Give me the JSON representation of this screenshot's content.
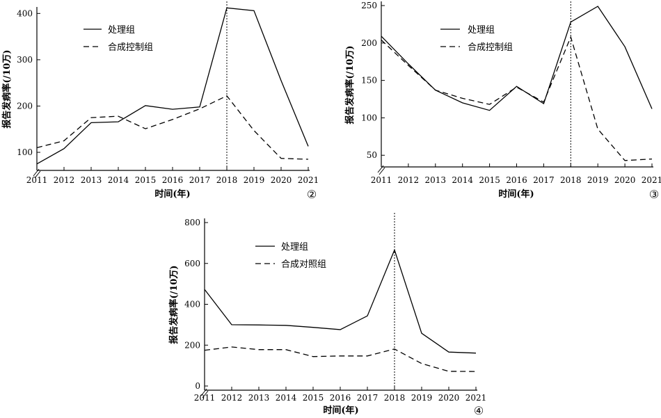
{
  "chart_data": [
    {
      "type": "line",
      "panel_marker": "②",
      "x": [
        "2011",
        "2012",
        "2013",
        "2014",
        "2015",
        "2016",
        "2017",
        "2018",
        "2019",
        "2020",
        "2021"
      ],
      "xlabel": "时间(年)",
      "ylabel": "报告发病率(/10万)",
      "ylim": [
        70,
        405
      ],
      "yticks": [
        100,
        200,
        300,
        400
      ],
      "reference_line_x": "2018",
      "axis_break": true,
      "legend_position": "top-left",
      "series": [
        {
          "name": "处理组",
          "style": "solid",
          "values": [
            75,
            108,
            164,
            166,
            201,
            193,
            198,
            412,
            406,
            255,
            113
          ]
        },
        {
          "name": "合成控制组",
          "style": "dashed",
          "values": [
            110,
            125,
            175,
            178,
            151,
            171,
            194,
            222,
            147,
            87,
            85
          ]
        }
      ]
    },
    {
      "type": "line",
      "panel_marker": "③",
      "x": [
        "2011",
        "2012",
        "2013",
        "2014",
        "2015",
        "2016",
        "2017",
        "2018",
        "2019",
        "2020",
        "2021"
      ],
      "xlabel": "时间(年)",
      "ylabel": "报告发病率(/10万)",
      "ylim": [
        40,
        250
      ],
      "yticks": [
        50,
        100,
        150,
        200,
        250
      ],
      "reference_line_x": "2018",
      "axis_break": true,
      "legend_position": "top-right",
      "series": [
        {
          "name": "处理组",
          "style": "solid",
          "values": [
            209,
            172,
            137,
            120,
            110,
            142,
            119,
            228,
            249,
            195,
            112
          ]
        },
        {
          "name": "合成控制组",
          "style": "dashed",
          "values": [
            204,
            170,
            137,
            126,
            118,
            141,
            121,
            208,
            85,
            43,
            45
          ]
        }
      ]
    },
    {
      "type": "line",
      "panel_marker": "④",
      "x": [
        "2011",
        "2012",
        "2013",
        "2014",
        "2015",
        "2016",
        "2017",
        "2018",
        "2019",
        "2020",
        "2021"
      ],
      "xlabel": "时间(年)",
      "ylabel": "报告发病率(/10万)",
      "ylim": [
        0,
        800
      ],
      "yticks": [
        0,
        200,
        400,
        600,
        800
      ],
      "reference_line_x": "2018",
      "axis_break": true,
      "legend_position": "top-center",
      "series": [
        {
          "name": "处理组",
          "style": "solid",
          "values": [
            473,
            300,
            299,
            297,
            287,
            276,
            343,
            666,
            258,
            166,
            161
          ]
        },
        {
          "name": "合成对照组",
          "style": "dashed",
          "values": [
            175,
            191,
            178,
            178,
            144,
            147,
            147,
            181,
            110,
            72,
            71
          ]
        }
      ]
    }
  ]
}
